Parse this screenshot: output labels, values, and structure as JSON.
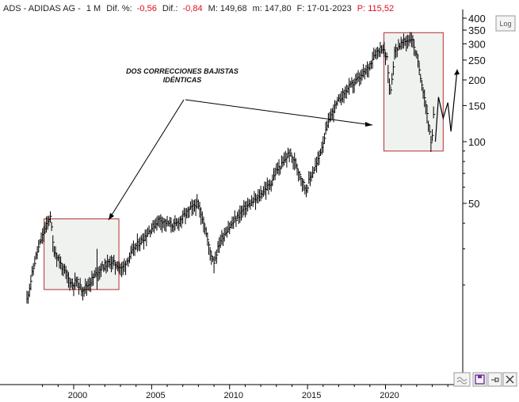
{
  "header": {
    "ticker": "ADS - ADIDAS AG -",
    "period": "1 M",
    "dif_pct_label": "Dif. %:",
    "dif_pct_value": "-0,56",
    "dif_label": "Dif.:",
    "dif_value": "-0,84",
    "max_label": "M: 149,68",
    "min_label": "m: 147,80",
    "date_label": "F: 17-01-2023",
    "price_label": "P: 115,52"
  },
  "toolbar": {
    "log_label": "Log"
  },
  "colors": {
    "negative": "#e0101a",
    "box_stroke": "#b03030",
    "box_fill": "#f0f2f0",
    "bars": "#000000",
    "axis": "#000000"
  },
  "annotation": {
    "line1": "DOS CORRECCIONES BAJISTAS",
    "line2": "IDÉNTICAS"
  },
  "chart_data": {
    "type": "bar",
    "subtype": "ohlc-monthly",
    "scale": "log",
    "title": "",
    "xlabel": "",
    "ylabel": "",
    "xlim": [
      1996.8,
      2025.0
    ],
    "ylim": [
      16,
      420
    ],
    "y_ticks_major": [
      50,
      100,
      150,
      200,
      250,
      300,
      350,
      400
    ],
    "y_ticks_minor": [
      20,
      30,
      40,
      60,
      70,
      80,
      90
    ],
    "x_ticks": [
      2000,
      2005,
      2010,
      2015,
      2020
    ],
    "x_tick_labels": [
      "2000",
      "2005",
      "2010",
      "2015",
      "2020"
    ],
    "grid": false,
    "series": [
      {
        "points": [
          [
            1997.0,
            17
          ],
          [
            1997.3,
            22
          ],
          [
            1997.6,
            28
          ],
          [
            1997.9,
            33
          ],
          [
            1998.2,
            38
          ],
          [
            1998.5,
            44
          ],
          [
            1998.7,
            30
          ],
          [
            1999.0,
            27
          ],
          [
            1999.3,
            24
          ],
          [
            1999.6,
            22
          ],
          [
            1999.9,
            20
          ],
          [
            2000.2,
            21
          ],
          [
            2000.5,
            19
          ],
          [
            2000.9,
            20
          ],
          [
            2001.3,
            22
          ],
          [
            2001.7,
            24
          ],
          [
            2002.0,
            25
          ],
          [
            2002.4,
            26
          ],
          [
            2002.8,
            25
          ],
          [
            2003.1,
            24
          ],
          [
            2003.5,
            27
          ],
          [
            2004.0,
            31
          ],
          [
            2004.5,
            34
          ],
          [
            2005.0,
            38
          ],
          [
            2005.5,
            42
          ],
          [
            2006.0,
            40
          ],
          [
            2006.5,
            39
          ],
          [
            2007.0,
            43
          ],
          [
            2007.5,
            47
          ],
          [
            2007.9,
            50
          ],
          [
            2008.3,
            42
          ],
          [
            2008.7,
            30
          ],
          [
            2009.0,
            26
          ],
          [
            2009.4,
            33
          ],
          [
            2009.8,
            37
          ],
          [
            2010.2,
            40
          ],
          [
            2010.6,
            44
          ],
          [
            2011.0,
            48
          ],
          [
            2011.4,
            50
          ],
          [
            2011.8,
            53
          ],
          [
            2012.2,
            58
          ],
          [
            2012.6,
            62
          ],
          [
            2013.0,
            72
          ],
          [
            2013.4,
            78
          ],
          [
            2013.8,
            88
          ],
          [
            2014.1,
            82
          ],
          [
            2014.5,
            70
          ],
          [
            2014.9,
            58
          ],
          [
            2015.2,
            68
          ],
          [
            2015.6,
            78
          ],
          [
            2016.0,
            100
          ],
          [
            2016.4,
            130
          ],
          [
            2016.8,
            150
          ],
          [
            2017.2,
            168
          ],
          [
            2017.6,
            182
          ],
          [
            2018.0,
            195
          ],
          [
            2018.5,
            210
          ],
          [
            2018.9,
            230
          ],
          [
            2019.3,
            270
          ],
          [
            2019.8,
            290
          ],
          [
            2020.1,
            250
          ],
          [
            2020.3,
            170
          ],
          [
            2020.6,
            280
          ],
          [
            2021.0,
            300
          ],
          [
            2021.3,
            310
          ],
          [
            2021.7,
            320
          ],
          [
            2022.0,
            260
          ],
          [
            2022.3,
            200
          ],
          [
            2022.6,
            150
          ],
          [
            2022.8,
            115
          ],
          [
            2022.95,
            92
          ],
          [
            2023.1,
            140
          ]
        ]
      }
    ],
    "projection": [
      [
        2023.2,
        100
      ],
      [
        2023.4,
        165
      ],
      [
        2023.7,
        130
      ],
      [
        2024.0,
        155
      ],
      [
        2024.2,
        112
      ],
      [
        2024.6,
        225
      ]
    ],
    "highlight_boxes": [
      {
        "x": [
          1998.1,
          2002.9
        ],
        "y": [
          19,
          42
        ]
      },
      {
        "x": [
          2019.9,
          2023.7
        ],
        "y": [
          90,
          340
        ]
      }
    ]
  }
}
